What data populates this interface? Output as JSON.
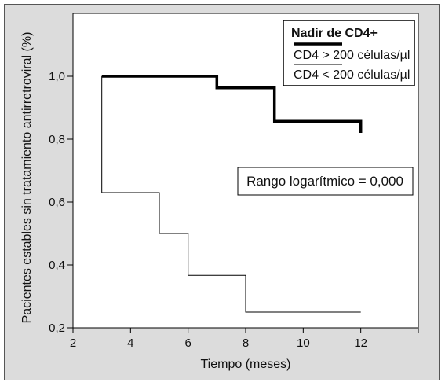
{
  "chart_data": {
    "type": "line",
    "step": true,
    "xlabel": "Tiempo (meses)",
    "ylabel": "Pacientes estables sin tratamiento antirretroviral (%)",
    "xlim": [
      2,
      14
    ],
    "ylim": [
      0.2,
      1.2
    ],
    "x_ticks": [
      "2",
      "4",
      "6",
      "8",
      "10",
      "12"
    ],
    "x_tick_values": [
      2,
      4,
      6,
      8,
      10,
      12
    ],
    "y_ticks": [
      "0,2",
      "0,4",
      "0,6",
      "0,8",
      "1,0"
    ],
    "y_tick_values": [
      0.2,
      0.4,
      0.6,
      0.8,
      1.0
    ],
    "legend_title": "Nadir de CD4+",
    "legend_position": "top-right",
    "annotation": "Rango logarítmico = 0,000",
    "series": [
      {
        "name": "CD4 > 200 células/µl",
        "style": "thick",
        "color": "#000000",
        "x": [
          3,
          7,
          7,
          9,
          9,
          12
        ],
        "y": [
          1.0,
          1.0,
          0.963,
          0.963,
          0.857,
          0.857
        ],
        "end_drop": [
          12,
          0.82
        ]
      },
      {
        "name": "CD4 < 200 células/µl",
        "style": "thin",
        "color": "#000000",
        "x": [
          3,
          3,
          5,
          5,
          6,
          6,
          8,
          8,
          12
        ],
        "y": [
          1.0,
          0.63,
          0.63,
          0.5,
          0.5,
          0.367,
          0.367,
          0.25,
          0.25
        ],
        "end_drop": null
      }
    ]
  }
}
